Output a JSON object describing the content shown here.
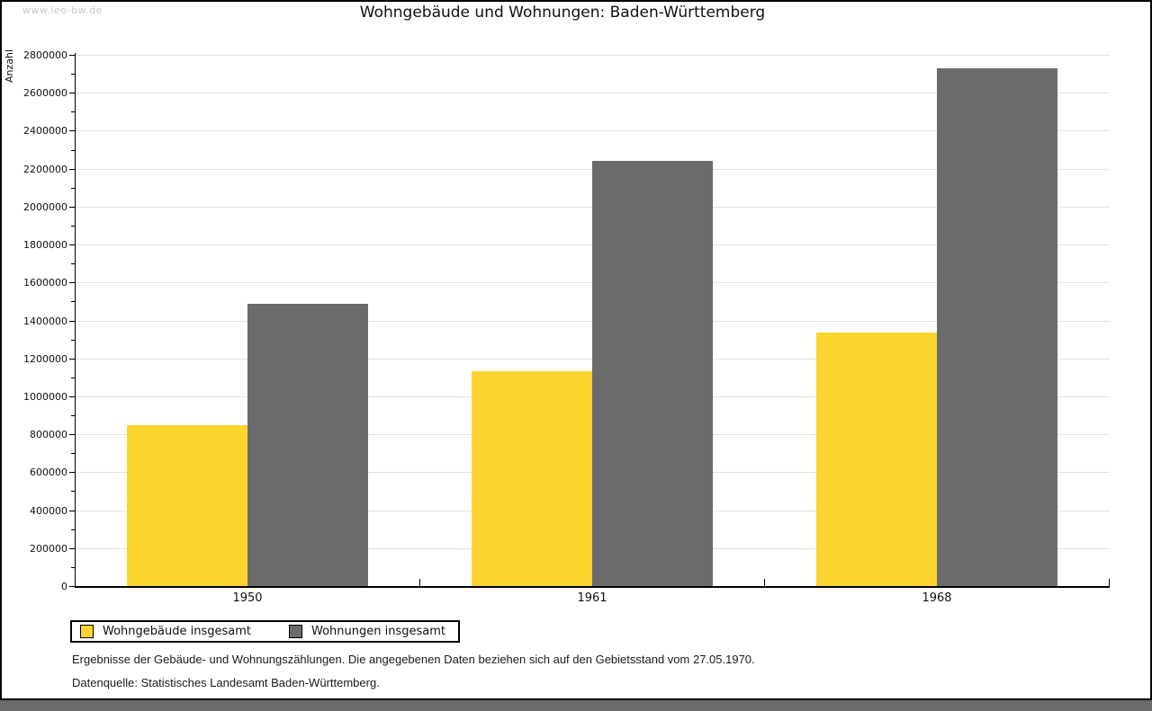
{
  "watermark": "www.leo-bw.de",
  "title": "Wohngebäude und Wohnungen: Baden-Württemberg",
  "chart_data": {
    "type": "bar",
    "title": "Wohngebäude und Wohnungen: Baden-Württemberg",
    "xlabel": "",
    "ylabel": "Anzahl",
    "categories": [
      "1950",
      "1961",
      "1968"
    ],
    "series": [
      {
        "name": "Wohngebäude insgesamt",
        "color": "#FDD42D",
        "values": [
          850000,
          1130000,
          1335000
        ]
      },
      {
        "name": "Wohnungen insgesamt",
        "color": "#6B6B6B",
        "values": [
          1490000,
          2240000,
          2730000
        ]
      }
    ],
    "ylim": [
      0,
      2800000
    ],
    "ytick_step": 200000,
    "yminor_step": 100000,
    "grid": true,
    "legend_position": "bottom-left"
  },
  "footnotes": [
    "Ergebnisse der Gebäude- und Wohnungszählungen. Die angegebenen Daten beziehen sich auf den Gebietsstand vom 27.05.1970.",
    "Datenquelle: Statistisches Landesamt Baden-Württemberg."
  ],
  "colors": {
    "series_yellow": "#FDD42D",
    "series_gray": "#6B6B6B",
    "gridline": "#E3E3E3",
    "axis": "#000000",
    "watermark": "#C9C9C9",
    "bottom_strip": "#6B6B6B",
    "background": "#FFFFFF"
  }
}
